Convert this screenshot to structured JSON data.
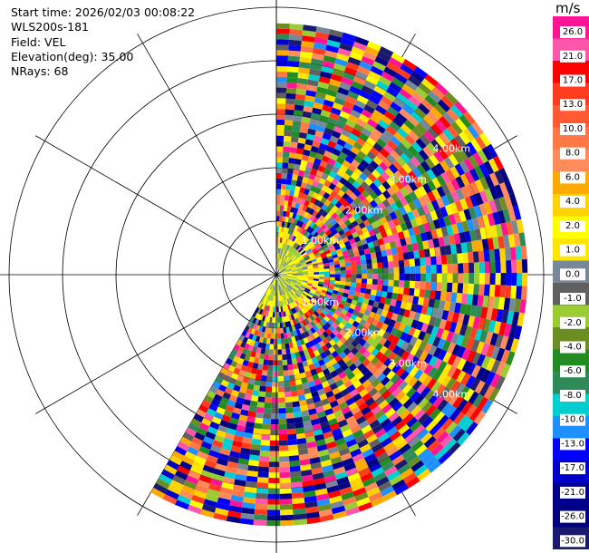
{
  "info": {
    "start_time": "Start time: 2026/02/03 00:08:22",
    "instrument": "WLS200s-181",
    "field": "Field: VEL",
    "elevation": "Elevation(deg): 35.00",
    "nrays": "NRays: 68"
  },
  "colorbar": {
    "unit": "m/s",
    "ticks": [
      "26.0",
      "21.0",
      "17.0",
      "13.0",
      "10.0",
      "8.0",
      "6.0",
      "4.0",
      "2.0",
      "1.0",
      "0.0",
      "-1.0",
      "-2.0",
      "-4.0",
      "-6.0",
      "-8.0",
      "-10.0",
      "-13.0",
      "-17.0",
      "-21.0",
      "-26.0",
      "-30.0"
    ],
    "colors": [
      "#ff1493",
      "#ff55ab",
      "#ff0000",
      "#ff3c1e",
      "#ff5a32",
      "#ff7846",
      "#ff8c5a",
      "#ffaa00",
      "#ffd200",
      "#ffff00",
      "#ffe600",
      "#778899",
      "#606060",
      "#9acd32",
      "#6b8e23",
      "#228b22",
      "#2e8b57",
      "#00ced1",
      "#1e90ff",
      "#0000ff",
      "#0000cd",
      "#00008b",
      "#000080",
      "#191970"
    ]
  },
  "ring_labels": [
    "1.00km",
    "2.00km",
    "3.00km",
    "4.00km"
  ],
  "chart_data": {
    "type": "heatmap",
    "projection": "polar-ppi",
    "field": "VEL",
    "units": "m/s",
    "elevation_deg": 35.0,
    "n_rays": 68,
    "azimuth_range_deg": [
      0,
      210
    ],
    "range_rings_km": [
      1,
      2,
      3,
      4
    ],
    "max_range_km": 4.7,
    "color_range": [
      -30,
      30
    ]
  }
}
